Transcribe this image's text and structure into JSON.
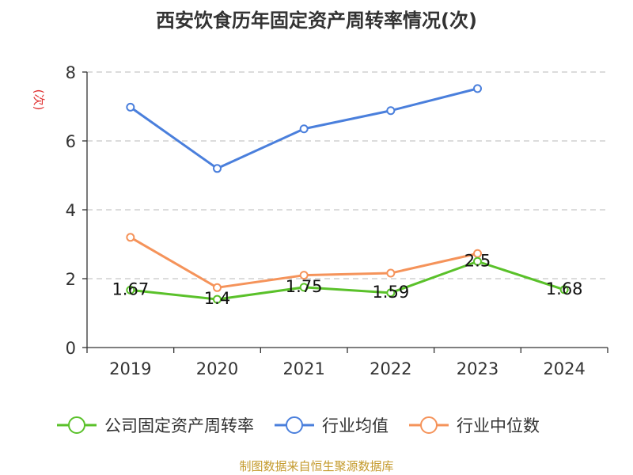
{
  "chart_data": {
    "type": "line",
    "title": "西安饮食历年固定资产周转率情况(次)",
    "ylabel": "(次)",
    "xlabel": "",
    "categories": [
      "2019",
      "2020",
      "2021",
      "2022",
      "2023",
      "2024"
    ],
    "ylim": [
      0,
      8
    ],
    "yticks": [
      0,
      2,
      4,
      6,
      8
    ],
    "grid": true,
    "legend_position": "bottom",
    "series": [
      {
        "name": "公司固定资产周转率",
        "color": "#5ac12a",
        "values": [
          1.67,
          1.4,
          1.75,
          1.59,
          2.5,
          1.68
        ],
        "labels": [
          "1.67",
          "1.4",
          "1.75",
          "1.59",
          "2.5",
          "1.68"
        ]
      },
      {
        "name": "行业均值",
        "color": "#4a7fdc",
        "values": [
          6.98,
          5.2,
          6.35,
          6.88,
          7.52,
          null
        ]
      },
      {
        "name": "行业中位数",
        "color": "#f5935a",
        "values": [
          3.2,
          1.74,
          2.1,
          2.16,
          2.73,
          null
        ]
      }
    ]
  },
  "source": "制图数据来自恒生聚源数据库"
}
